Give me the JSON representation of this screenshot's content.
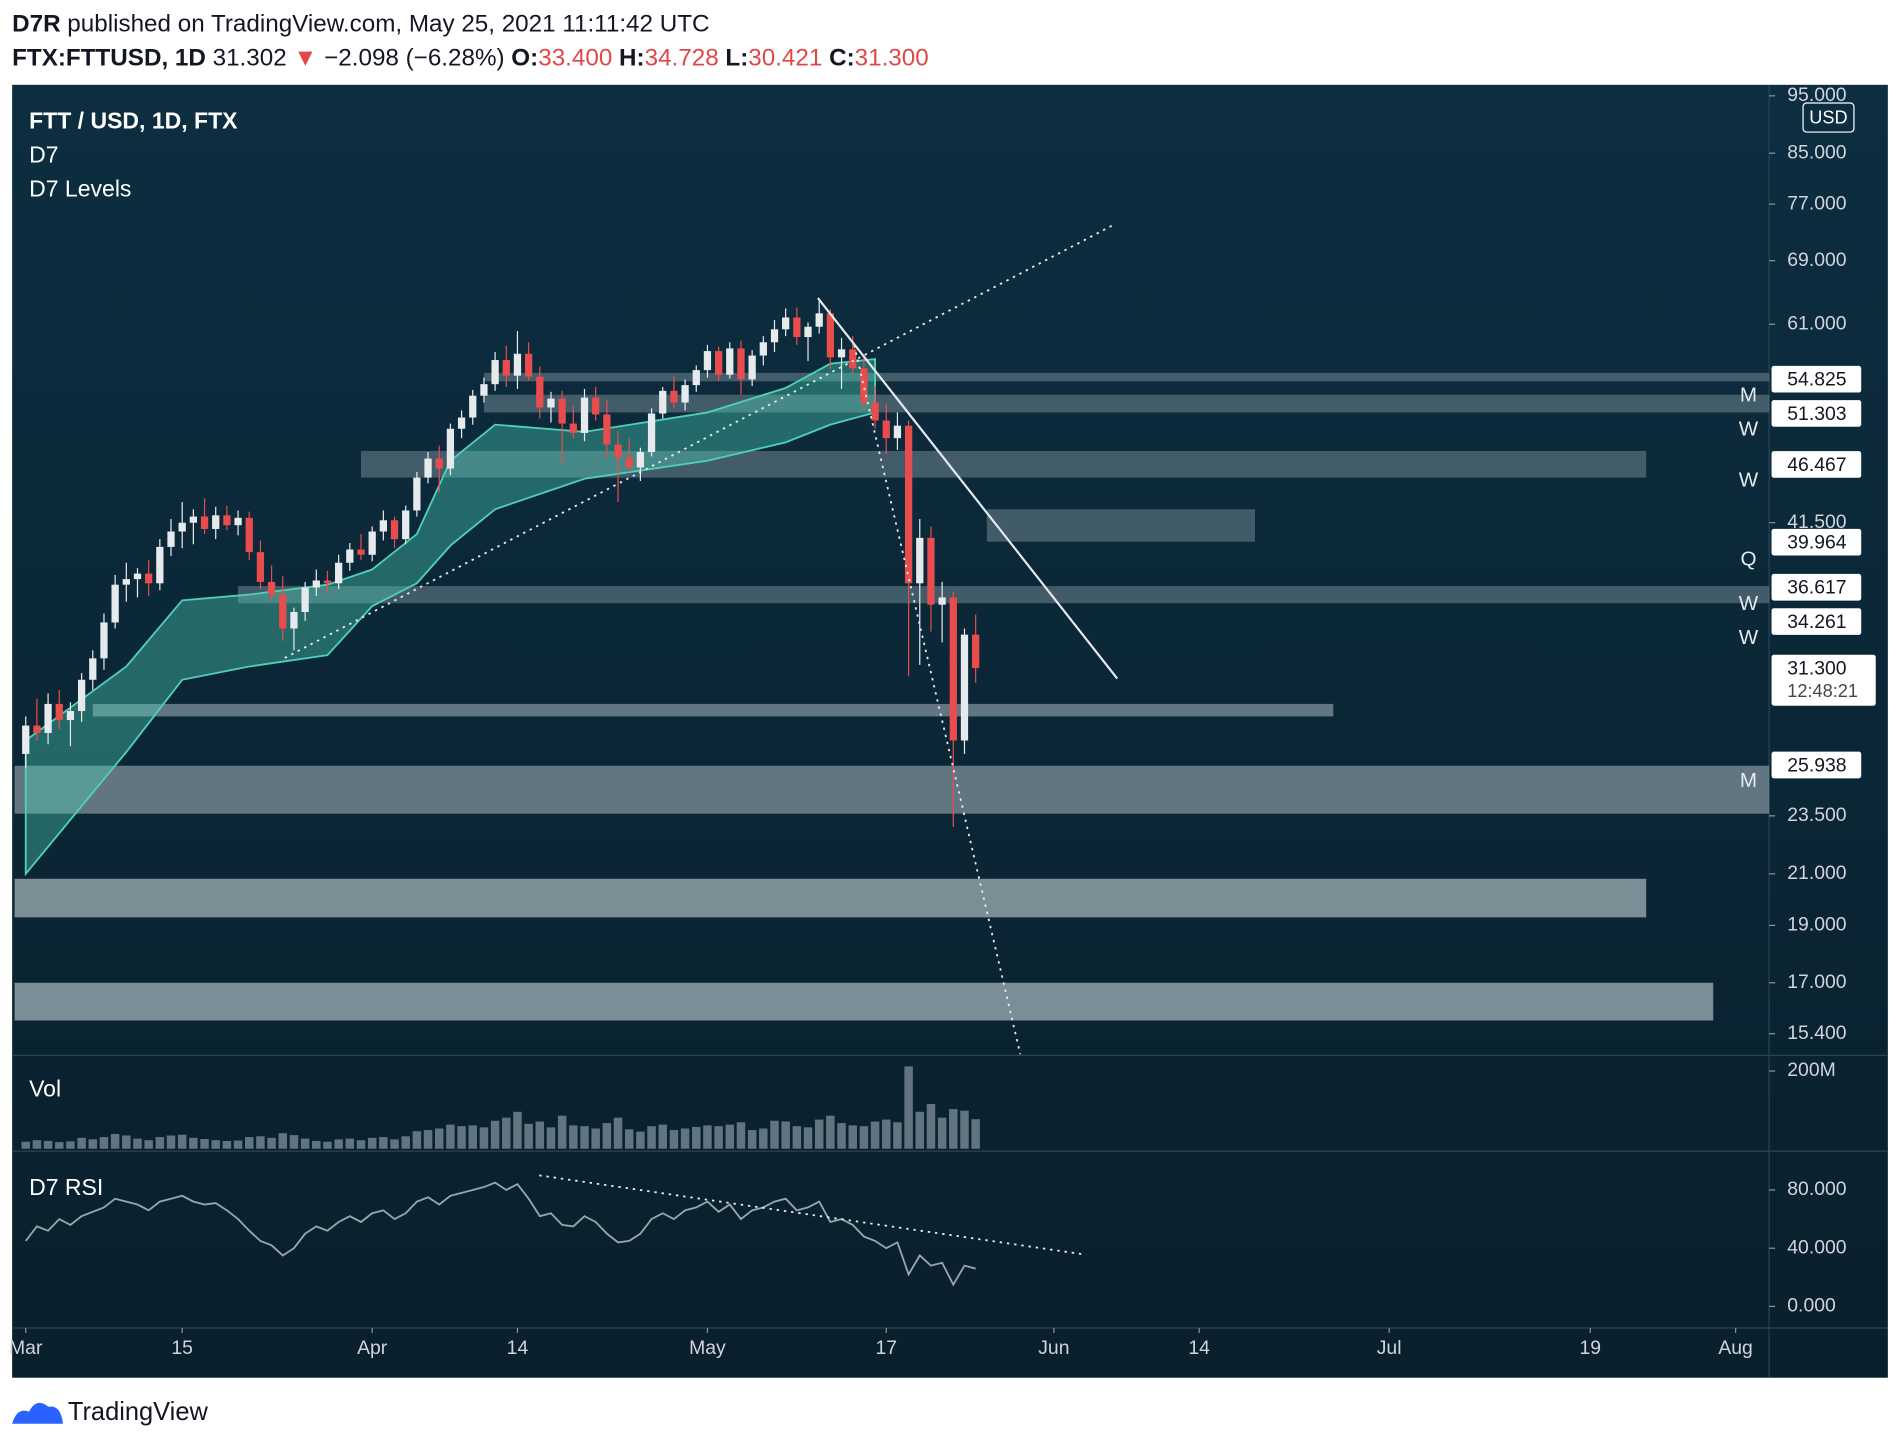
{
  "header": {
    "author": "D7R",
    "published": "published on TradingView.com, May 25, 2021 11:11:42 UTC",
    "symbol": "FTX:FTTUSD, 1D",
    "last": "31.302",
    "arrow": "▼",
    "change": "−2.098 (−6.28%)",
    "ohlc": [
      {
        "key": "O:",
        "value": "33.400"
      },
      {
        "key": "H:",
        "value": "34.728"
      },
      {
        "key": "L:",
        "value": "30.421"
      },
      {
        "key": "C:",
        "value": "31.300"
      }
    ]
  },
  "footer": {
    "brand": "TradingView"
  },
  "chart_data": {
    "type": "candlestick",
    "title": "FTT / USD, 1D, FTX",
    "indicators": [
      "D7",
      "D7 Levels"
    ],
    "currency": "USD",
    "log_scale": true,
    "grid": false,
    "up_color": "#e6eaed",
    "down_color": "#e84c4c",
    "x": [
      "Mar 1",
      "Mar 2",
      "Mar 3",
      "Mar 4",
      "Mar 5",
      "Mar 6",
      "Mar 7",
      "Mar 8",
      "Mar 9",
      "Mar 10",
      "Mar 11",
      "Mar 12",
      "Mar 13",
      "Mar 14",
      "Mar 15",
      "Mar 16",
      "Mar 17",
      "Mar 18",
      "Mar 19",
      "Mar 20",
      "Mar 21",
      "Mar 22",
      "Mar 23",
      "Mar 24",
      "Mar 25",
      "Mar 26",
      "Mar 27",
      "Mar 28",
      "Mar 29",
      "Mar 30",
      "Mar 31",
      "Apr 1",
      "Apr 2",
      "Apr 3",
      "Apr 4",
      "Apr 5",
      "Apr 6",
      "Apr 7",
      "Apr 8",
      "Apr 9",
      "Apr 10",
      "Apr 11",
      "Apr 12",
      "Apr 13",
      "Apr 14",
      "Apr 15",
      "Apr 16",
      "Apr 17",
      "Apr 18",
      "Apr 19",
      "Apr 20",
      "Apr 21",
      "Apr 22",
      "Apr 23",
      "Apr 24",
      "Apr 25",
      "Apr 26",
      "Apr 27",
      "Apr 28",
      "Apr 29",
      "Apr 30",
      "May 1",
      "May 2",
      "May 3",
      "May 4",
      "May 5",
      "May 6",
      "May 7",
      "May 8",
      "May 9",
      "May 10",
      "May 11",
      "May 12",
      "May 13",
      "May 14",
      "May 15",
      "May 16",
      "May 17",
      "May 18",
      "May 19",
      "May 20",
      "May 21",
      "May 22",
      "May 23",
      "May 24",
      "May 25"
    ],
    "open": [
      26.5,
      28.0,
      27.6,
      29.2,
      28.3,
      28.8,
      30.6,
      31.9,
      34.2,
      36.8,
      37.2,
      37.6,
      36.9,
      39.6,
      40.8,
      41.5,
      42.0,
      41.0,
      42.1,
      41.3,
      41.9,
      39.2,
      37.0,
      36.1,
      33.8,
      34.9,
      36.6,
      37.1,
      36.9,
      38.4,
      39.4,
      39.0,
      40.8,
      41.7,
      40.2,
      42.5,
      45.3,
      47.0,
      46.1,
      49.8,
      50.9,
      53.1,
      54.3,
      56.9,
      55.2,
      57.6,
      55.1,
      51.9,
      52.8,
      50.3,
      49.4,
      52.9,
      51.2,
      48.3,
      47.1,
      46.2,
      47.6,
      51.3,
      53.6,
      52.4,
      54.2,
      55.8,
      57.9,
      55.3,
      58.2,
      54.8,
      57.4,
      58.9,
      60.4,
      61.8,
      59.5,
      60.7,
      62.3,
      57.2,
      58.1,
      56.0,
      52.4,
      50.6,
      48.9,
      50.1,
      36.9,
      40.3,
      35.4,
      35.9,
      27.2,
      33.4
    ],
    "high": [
      28.5,
      29.5,
      29.8,
      30.0,
      29.3,
      31.0,
      32.4,
      34.8,
      37.5,
      38.4,
      38.0,
      38.6,
      40.2,
      41.8,
      43.2,
      42.6,
      43.5,
      42.8,
      42.9,
      42.5,
      42.4,
      40.1,
      38.2,
      37.4,
      35.2,
      37.0,
      37.9,
      37.8,
      39.0,
      39.9,
      40.6,
      41.2,
      42.5,
      42.0,
      42.9,
      45.8,
      47.6,
      48.2,
      50.3,
      51.6,
      53.7,
      55.0,
      57.8,
      58.5,
      60.2,
      58.9,
      56.2,
      53.5,
      53.6,
      52.0,
      53.8,
      54.0,
      52.7,
      49.6,
      48.9,
      48.0,
      51.8,
      54.0,
      55.1,
      54.8,
      56.3,
      58.6,
      58.4,
      58.9,
      59.1,
      58.0,
      59.6,
      61.5,
      62.9,
      63.0,
      61.2,
      64.1,
      62.8,
      59.4,
      59.6,
      57.2,
      54.1,
      52.3,
      51.4,
      50.6,
      41.8,
      41.2,
      37.0,
      36.3,
      33.8,
      34.728
    ],
    "low": [
      25.8,
      27.2,
      27.0,
      27.8,
      26.9,
      28.2,
      30.0,
      31.2,
      33.8,
      35.6,
      35.9,
      36.0,
      36.4,
      38.9,
      39.5,
      39.8,
      40.6,
      40.2,
      40.9,
      40.5,
      38.6,
      36.5,
      35.6,
      33.0,
      32.4,
      34.3,
      36.0,
      36.2,
      36.5,
      37.8,
      38.6,
      38.5,
      40.1,
      39.5,
      39.8,
      42.0,
      44.8,
      44.0,
      45.5,
      48.9,
      50.2,
      52.4,
      53.6,
      54.0,
      53.8,
      54.7,
      50.8,
      50.4,
      46.5,
      48.9,
      48.6,
      50.6,
      47.0,
      43.2,
      45.8,
      45.0,
      47.2,
      50.8,
      51.9,
      51.6,
      53.5,
      55.0,
      54.6,
      54.9,
      53.2,
      54.1,
      56.3,
      57.8,
      59.6,
      58.6,
      56.8,
      59.9,
      55.9,
      53.8,
      55.4,
      51.7,
      49.8,
      47.4,
      47.8,
      30.8,
      31.5,
      33.6,
      32.9,
      23.0,
      26.5,
      30.421
    ],
    "close": [
      28.0,
      27.6,
      29.2,
      28.3,
      28.8,
      30.6,
      31.9,
      34.2,
      36.8,
      37.2,
      37.6,
      36.9,
      39.6,
      40.8,
      41.5,
      42.0,
      41.0,
      42.1,
      41.3,
      41.9,
      39.2,
      37.0,
      36.1,
      33.8,
      34.9,
      36.6,
      37.1,
      36.9,
      38.4,
      39.4,
      39.0,
      40.8,
      41.7,
      40.2,
      42.5,
      45.3,
      47.0,
      46.1,
      49.8,
      50.9,
      53.1,
      54.3,
      56.9,
      55.2,
      57.6,
      55.1,
      51.9,
      52.8,
      50.3,
      49.4,
      52.9,
      51.2,
      48.3,
      47.1,
      46.2,
      47.6,
      51.3,
      53.6,
      52.4,
      54.2,
      55.8,
      57.9,
      55.3,
      58.2,
      54.8,
      57.4,
      58.9,
      60.4,
      61.8,
      59.5,
      60.7,
      62.3,
      57.2,
      58.1,
      56.0,
      52.4,
      50.6,
      48.9,
      50.1,
      36.9,
      40.3,
      35.4,
      35.9,
      27.2,
      33.4,
      31.3
    ],
    "xlim": [
      "Feb 28",
      "Aug 4"
    ],
    "xticks": [
      {
        "value": "Mar 1",
        "label": "Mar"
      },
      {
        "value": "Mar 15",
        "label": "15"
      },
      {
        "value": "Apr 1",
        "label": "Apr"
      },
      {
        "value": "Apr 14",
        "label": "14"
      },
      {
        "value": "May 1",
        "label": "May"
      },
      {
        "value": "May 17",
        "label": "17"
      },
      {
        "value": "Jun 1",
        "label": "Jun"
      },
      {
        "value": "Jun 14",
        "label": "14"
      },
      {
        "value": "Jul 1",
        "label": "Jul"
      },
      {
        "value": "Jul 19",
        "label": "19"
      },
      {
        "value": "Aug 1",
        "label": "Aug"
      }
    ],
    "ylim": [
      14.8,
      96.6
    ],
    "yticks": [
      {
        "value": 95,
        "label": "95.000"
      },
      {
        "value": 85,
        "label": "85.000"
      },
      {
        "value": 77,
        "label": "77.000"
      },
      {
        "value": 69,
        "label": "69.000"
      },
      {
        "value": 61,
        "label": "61.000"
      },
      {
        "value": 41.5,
        "label": "41.500"
      },
      {
        "value": 23.5,
        "label": "23.500"
      },
      {
        "value": 21,
        "label": "21.000"
      },
      {
        "value": 19,
        "label": "19.000"
      },
      {
        "value": 17,
        "label": "17.000"
      },
      {
        "value": 15.4,
        "label": "15.400"
      }
    ],
    "price_labels": [
      {
        "value": 54.825,
        "label": "54.825"
      },
      {
        "value": 51.303,
        "label": "51.303"
      },
      {
        "value": 46.467,
        "label": "46.467"
      },
      {
        "value": 39.964,
        "label": "39.964"
      },
      {
        "value": 36.617,
        "label": "36.617"
      },
      {
        "value": 34.261,
        "label": "34.261"
      },
      {
        "value": 31.3,
        "label": "31.300"
      },
      {
        "value": 25.938,
        "label": "25.938"
      }
    ],
    "countdown": "12:48:21",
    "zone_labels": [
      "M",
      "W",
      "W",
      "Q",
      "W",
      "W",
      "M"
    ],
    "zones": [
      {
        "low": 54.6,
        "high": 55.5,
        "from": "Apr 11",
        "to": "Aug 4"
      },
      {
        "low": 51.4,
        "high": 53.2,
        "from": "Apr 11",
        "to": "Aug 4"
      },
      {
        "low": 45.3,
        "high": 47.7,
        "from": "Mar 31",
        "to": "Jul 24"
      },
      {
        "low": 40.0,
        "high": 42.6,
        "from": "May 26",
        "to": "Jun 19"
      },
      {
        "low": 35.5,
        "high": 36.7,
        "from": "Mar 20",
        "to": "Aug 4"
      },
      {
        "low": 28.5,
        "high": 29.2,
        "from": "Mar 7",
        "to": "Jun 26"
      },
      {
        "low": 23.6,
        "high": 25.9,
        "from": "Feb 28",
        "to": "Aug 4"
      },
      {
        "low": 19.3,
        "high": 20.8,
        "from": "Feb 28",
        "to": "Jul 24"
      },
      {
        "low": 15.8,
        "high": 17.0,
        "from": "Feb 28",
        "to": "Jul 30"
      }
    ],
    "cloud": {
      "color": "#4fd1b8",
      "x": [
        "Mar 1",
        "Mar 10",
        "Mar 15",
        "Mar 21",
        "Mar 28",
        "Apr 1",
        "Apr 5",
        "Apr 8",
        "Apr 12",
        "Apr 20",
        "May 1",
        "May 8",
        "May 12",
        "May 16"
      ],
      "upper": [
        27.2,
        31.4,
        35.7,
        36.1,
        36.8,
        37.9,
        40.6,
        46.8,
        50.2,
        49.5,
        51.4,
        53.9,
        56.5,
        57.0
      ],
      "lower": [
        21.0,
        26.6,
        30.6,
        31.4,
        32.1,
        35.3,
        36.9,
        39.7,
        42.6,
        45.2,
        46.8,
        48.5,
        50.2,
        51.4
      ]
    },
    "volume": {
      "title": "Vol",
      "color": "#7f909b",
      "ylim": [
        0,
        234000000
      ],
      "yticks": [
        {
          "value": 200000000,
          "label": "200M"
        }
      ],
      "values": [
        18000000,
        22000000,
        20000000,
        17000000,
        19000000,
        28000000,
        24000000,
        30000000,
        38000000,
        34000000,
        26000000,
        22000000,
        30000000,
        34000000,
        36000000,
        28000000,
        25000000,
        22000000,
        20000000,
        21000000,
        30000000,
        32000000,
        28000000,
        40000000,
        35000000,
        26000000,
        20000000,
        18000000,
        24000000,
        26000000,
        22000000,
        28000000,
        30000000,
        24000000,
        32000000,
        45000000,
        48000000,
        52000000,
        62000000,
        58000000,
        60000000,
        55000000,
        72000000,
        80000000,
        95000000,
        64000000,
        70000000,
        55000000,
        85000000,
        60000000,
        58000000,
        52000000,
        66000000,
        80000000,
        50000000,
        44000000,
        58000000,
        62000000,
        48000000,
        52000000,
        56000000,
        60000000,
        58000000,
        62000000,
        68000000,
        48000000,
        52000000,
        72000000,
        70000000,
        58000000,
        55000000,
        75000000,
        85000000,
        66000000,
        60000000,
        58000000,
        70000000,
        75000000,
        68000000,
        212000000,
        95000000,
        115000000,
        80000000,
        102000000,
        98000000,
        76000000
      ]
    },
    "rsi": {
      "title": "D7 RSI",
      "color": "#9aa6ae",
      "ylim": [
        -14,
        105
      ],
      "yticks": [
        {
          "value": 80,
          "label": "80.000"
        },
        {
          "value": 40,
          "label": "40.000"
        },
        {
          "value": 0,
          "label": "0.000"
        }
      ],
      "values": [
        45,
        55,
        52,
        60,
        56,
        62,
        65,
        68,
        74,
        72,
        70,
        66,
        72,
        74,
        76,
        72,
        70,
        71,
        66,
        60,
        52,
        45,
        42,
        35,
        40,
        50,
        55,
        52,
        58,
        62,
        58,
        64,
        66,
        60,
        64,
        72,
        75,
        70,
        76,
        78,
        80,
        82,
        85,
        80,
        84,
        74,
        62,
        64,
        56,
        55,
        62,
        58,
        50,
        44,
        45,
        50,
        60,
        64,
        60,
        66,
        68,
        72,
        65,
        70,
        60,
        66,
        68,
        72,
        74,
        66,
        68,
        72,
        58,
        60,
        56,
        48,
        45,
        40,
        44,
        22,
        35,
        28,
        30,
        15,
        28,
        26
      ]
    }
  }
}
